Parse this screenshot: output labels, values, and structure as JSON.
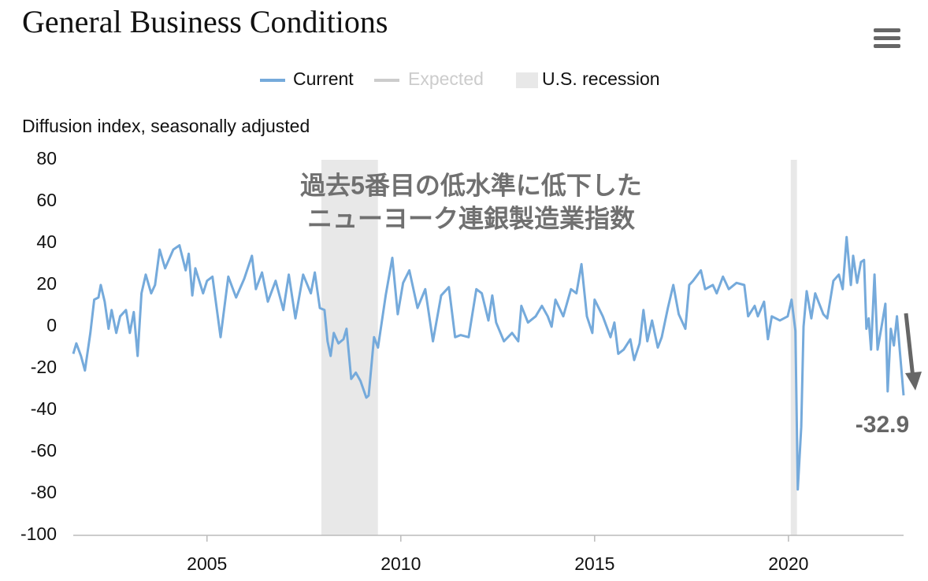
{
  "chart_data": {
    "type": "line",
    "title": "General Business Conditions",
    "y_label": "Diffusion index, seasonally adjusted",
    "annotation": [
      "過去5番目の低水準に低下した",
      "ニューヨーク連銀製造業指数"
    ],
    "x": [
      2001.55,
      2001.63,
      2001.75,
      2001.85,
      2001.99,
      2002.09,
      2002.2,
      2002.26,
      2002.36,
      2002.46,
      2002.54,
      2002.66,
      2002.76,
      2002.91,
      2003.01,
      2003.11,
      2003.21,
      2003.31,
      2003.42,
      2003.56,
      2003.66,
      2003.78,
      2003.92,
      2004.13,
      2004.29,
      2004.45,
      2004.53,
      2004.62,
      2004.7,
      2004.9,
      2005.0,
      2005.14,
      2005.35,
      2005.55,
      2005.75,
      2005.96,
      2006.16,
      2006.26,
      2006.42,
      2006.57,
      2006.77,
      2006.97,
      2007.11,
      2007.28,
      2007.48,
      2007.68,
      2007.78,
      2007.91,
      2008.03,
      2008.11,
      2008.19,
      2008.27,
      2008.39,
      2008.52,
      2008.6,
      2008.72,
      2008.84,
      2008.96,
      2009.11,
      2009.17,
      2009.31,
      2009.41,
      2009.61,
      2009.78,
      2009.92,
      2010.06,
      2010.22,
      2010.43,
      2010.63,
      2010.83,
      2011.04,
      2011.24,
      2011.4,
      2011.54,
      2011.75,
      2011.95,
      2012.09,
      2012.26,
      2012.36,
      2012.46,
      2012.66,
      2012.87,
      2013.03,
      2013.11,
      2013.28,
      2013.48,
      2013.64,
      2013.79,
      2013.89,
      2013.99,
      2014.19,
      2014.39,
      2014.53,
      2014.66,
      2014.8,
      2014.94,
      2015.0,
      2015.21,
      2015.41,
      2015.51,
      2015.61,
      2015.75,
      2015.92,
      2016.02,
      2016.16,
      2016.26,
      2016.36,
      2016.48,
      2016.63,
      2016.73,
      2016.89,
      2017.03,
      2017.17,
      2017.34,
      2017.44,
      2017.54,
      2017.74,
      2017.85,
      2018.05,
      2018.15,
      2018.31,
      2018.46,
      2018.66,
      2018.86,
      2018.96,
      2019.13,
      2019.21,
      2019.37,
      2019.47,
      2019.57,
      2019.78,
      2019.98,
      2020.08,
      2020.18,
      2020.24,
      2020.33,
      2020.39,
      2020.47,
      2020.59,
      2020.69,
      2020.9,
      2021.0,
      2021.16,
      2021.3,
      2021.4,
      2021.5,
      2021.61,
      2021.67,
      2021.77,
      2021.87,
      2021.95,
      2022.01,
      2022.07,
      2022.13,
      2022.22,
      2022.3,
      2022.42,
      2022.5,
      2022.56,
      2022.64,
      2022.72,
      2022.8,
      2022.87,
      2022.97
    ],
    "series": [
      {
        "name": "Current",
        "color": "#75aadb",
        "values": [
          -13,
          -8,
          -14,
          -21,
          -3,
          13,
          14,
          20,
          12,
          -1,
          8,
          -3,
          5,
          8,
          -3,
          7,
          -14,
          16,
          25,
          16,
          20,
          37,
          28,
          37,
          39,
          27,
          35,
          15,
          28,
          16,
          22,
          24,
          -5,
          24,
          14,
          23,
          34,
          18,
          26,
          12,
          22,
          8,
          25,
          4,
          25,
          16,
          26,
          9,
          8,
          -7,
          -14,
          -3,
          -8,
          -6,
          -1,
          -25,
          -22,
          -26,
          -34,
          -33,
          -5,
          -10,
          15,
          33,
          6,
          21,
          27,
          9,
          18,
          -7,
          15,
          19,
          -5,
          -4,
          -5,
          18,
          16,
          3,
          15,
          2,
          -7,
          -3,
          -7,
          10,
          2,
          5,
          10,
          5,
          0,
          13,
          5,
          18,
          16,
          30,
          5,
          -3,
          13,
          5,
          -5,
          2,
          -13,
          -11,
          -6,
          -16,
          -8,
          8,
          -7,
          3,
          -10,
          -5,
          9,
          20,
          6,
          -1,
          20,
          22,
          27,
          18,
          20,
          16,
          24,
          18,
          21,
          20,
          5,
          10,
          5,
          12,
          -6,
          5,
          3,
          5,
          13,
          -2,
          -78,
          -48,
          0,
          17,
          4,
          16,
          6,
          4,
          22,
          25,
          18,
          43,
          20,
          34,
          21,
          31,
          32,
          -1,
          4,
          -11,
          25,
          -11,
          2,
          11,
          -31,
          -1,
          -9,
          5,
          -11,
          -32.9
        ]
      }
    ],
    "expected": {
      "name": "Expected",
      "color": "#cccccc"
    },
    "recession": {
      "name": "U.S. recession",
      "color": "#e8e8e8",
      "spans": [
        [
          2007.95,
          2009.41
        ],
        [
          2020.06,
          2020.22
        ]
      ]
    },
    "xlim": [
      2001.55,
      2022.97
    ],
    "xticks": [
      2005,
      2010,
      2015,
      2020
    ],
    "ylim": [
      -100,
      80
    ],
    "yticks": [
      -100,
      -80,
      -60,
      -40,
      -20,
      0,
      20,
      40,
      60,
      80
    ],
    "grid": false
  }
}
